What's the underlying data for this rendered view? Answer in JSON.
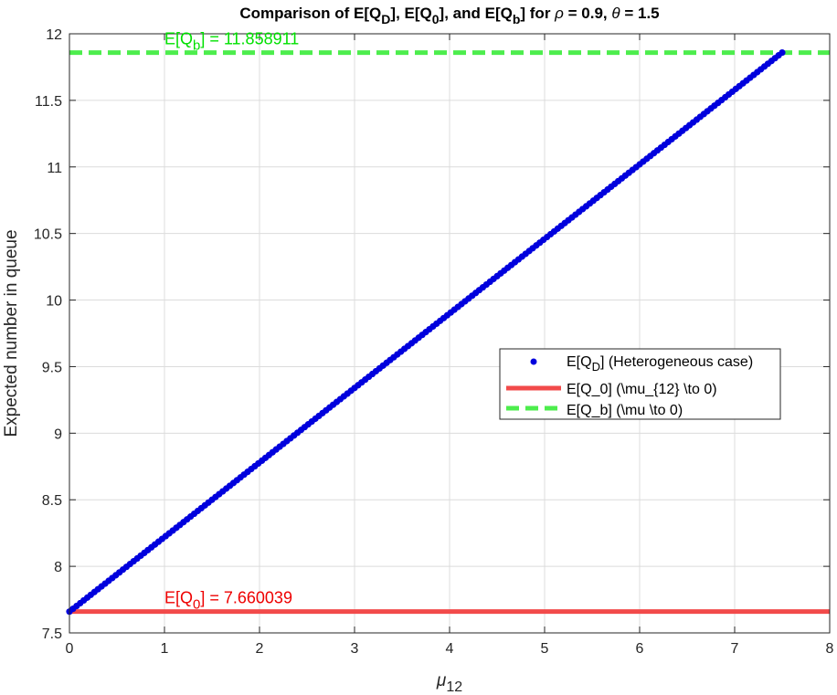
{
  "chart_data": {
    "type": "line",
    "title": {
      "prefix": "Comparison of E[Q",
      "sub1": "D",
      "mid1": "], E[Q",
      "sub2": "0",
      "mid2": "], and E[Q",
      "sub3": "b",
      "mid3": "] for ",
      "rho_symbol": "ρ",
      "rho_value": " = 0.9, ",
      "theta_symbol": "θ",
      "theta_value": " = 1.5"
    },
    "xlabel": {
      "symbol": "μ",
      "sub": "12"
    },
    "ylabel": "Expected number in queue",
    "xlim": [
      0,
      8
    ],
    "ylim": [
      7.5,
      12
    ],
    "x_ticks": [
      "0",
      "1",
      "2",
      "3",
      "4",
      "5",
      "6",
      "7",
      "8"
    ],
    "y_ticks": [
      "7.5",
      "8",
      "8.5",
      "9",
      "9.5",
      "10",
      "10.5",
      "11",
      "11.5",
      "12"
    ],
    "grid": true,
    "legend_position": "center-right",
    "series": [
      {
        "name": "E[Q_D] (Heterogeneous case)",
        "name_parts": {
          "pre": "E[Q",
          "sub": "D",
          "post": "] (Heterogeneous case)"
        },
        "style": "dots",
        "color": "#0000dd",
        "x_start": 0,
        "x_end": 7.5,
        "y_start": 7.660039,
        "y_end": 11.858911
      },
      {
        "name": "E[Q_0] (\\mu_{12} \\to 0)",
        "style": "solid",
        "color": "#f24a4a",
        "x": [
          0,
          8
        ],
        "y": [
          7.660039,
          7.660039
        ]
      },
      {
        "name": "E[Q_b] (\\mu \\to 0)",
        "style": "dashed",
        "color": "#4ded4d",
        "x": [
          0,
          8
        ],
        "y": [
          11.858911,
          11.858911
        ]
      }
    ],
    "annotations": [
      {
        "pre": "E[Q",
        "sub": "b",
        "post": "] = 11.858911",
        "x": 1,
        "y": 11.858911,
        "color": "#00e000"
      },
      {
        "pre": "E[Q",
        "sub": "0",
        "post": "] = 7.660039",
        "x": 1,
        "y": 7.660039,
        "color": "#ee0000"
      }
    ]
  }
}
